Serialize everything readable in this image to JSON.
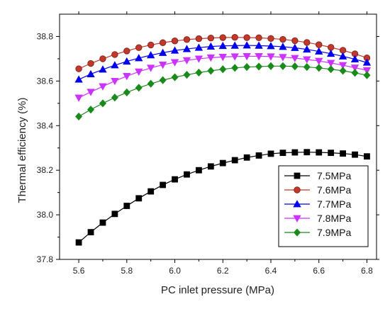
{
  "chart_data": {
    "type": "line",
    "title": "",
    "xlabel": "PC inlet pressure (MPa)",
    "ylabel": "Thermal efficiency  (%)",
    "xlim": [
      5.52,
      6.84
    ],
    "ylim": [
      37.8,
      38.9
    ],
    "xticks": [
      5.6,
      5.8,
      6.0,
      6.2,
      6.4,
      6.6,
      6.8
    ],
    "yticks": [
      37.8,
      38.0,
      38.2,
      38.4,
      38.6,
      38.8
    ],
    "xtick_labels": [
      "5.6",
      "5.8",
      "6.0",
      "6.2",
      "6.4",
      "6.6",
      "6.8"
    ],
    "ytick_labels": [
      "37.8",
      "38.0",
      "38.2",
      "38.4",
      "38.6",
      "38.8"
    ],
    "grid": false,
    "legend_position": "bottom-right",
    "x": [
      5.6,
      5.65,
      5.7,
      5.75,
      5.8,
      5.85,
      5.9,
      5.95,
      6.0,
      6.05,
      6.1,
      6.15,
      6.2,
      6.25,
      6.3,
      6.35,
      6.4,
      6.45,
      6.5,
      6.55,
      6.6,
      6.65,
      6.7,
      6.75,
      6.8
    ],
    "series": [
      {
        "name": "7.5MPa",
        "color": "#000000",
        "marker": "square",
        "values": [
          37.876,
          37.922,
          37.965,
          38.004,
          38.04,
          38.074,
          38.105,
          38.134,
          38.159,
          38.181,
          38.2,
          38.217,
          38.232,
          38.245,
          38.257,
          38.266,
          38.274,
          38.278,
          38.28,
          38.281,
          38.28,
          38.278,
          38.275,
          38.27,
          38.262
        ]
      },
      {
        "name": "7.6MPa",
        "color": "#c0392b",
        "marker": "circle",
        "values": [
          38.655,
          38.679,
          38.7,
          38.719,
          38.735,
          38.75,
          38.762,
          38.772,
          38.78,
          38.786,
          38.79,
          38.793,
          38.795,
          38.796,
          38.795,
          38.794,
          38.791,
          38.787,
          38.781,
          38.773,
          38.763,
          38.751,
          38.738,
          38.722,
          38.704
        ]
      },
      {
        "name": "7.7MPa",
        "color": "#0000ee",
        "marker": "triangle-up",
        "values": [
          38.607,
          38.631,
          38.652,
          38.671,
          38.688,
          38.703,
          38.716,
          38.727,
          38.737,
          38.744,
          38.75,
          38.755,
          38.758,
          38.759,
          38.76,
          38.759,
          38.757,
          38.754,
          38.749,
          38.742,
          38.733,
          38.723,
          38.711,
          38.698,
          38.683
        ]
      },
      {
        "name": "7.8MPa",
        "color": "#cc33ff",
        "marker": "triangle-down",
        "values": [
          38.525,
          38.551,
          38.576,
          38.6,
          38.622,
          38.642,
          38.659,
          38.673,
          38.684,
          38.693,
          38.7,
          38.705,
          38.708,
          38.71,
          38.711,
          38.711,
          38.71,
          38.707,
          38.703,
          38.697,
          38.69,
          38.681,
          38.671,
          38.66,
          38.648
        ]
      },
      {
        "name": "7.9MPa",
        "color": "#1a8a1a",
        "marker": "diamond",
        "values": [
          38.441,
          38.472,
          38.5,
          38.526,
          38.549,
          38.57,
          38.588,
          38.604,
          38.617,
          38.628,
          38.638,
          38.646,
          38.653,
          38.659,
          38.663,
          38.665,
          38.667,
          38.667,
          38.666,
          38.663,
          38.659,
          38.653,
          38.646,
          38.637,
          38.626
        ]
      }
    ]
  }
}
